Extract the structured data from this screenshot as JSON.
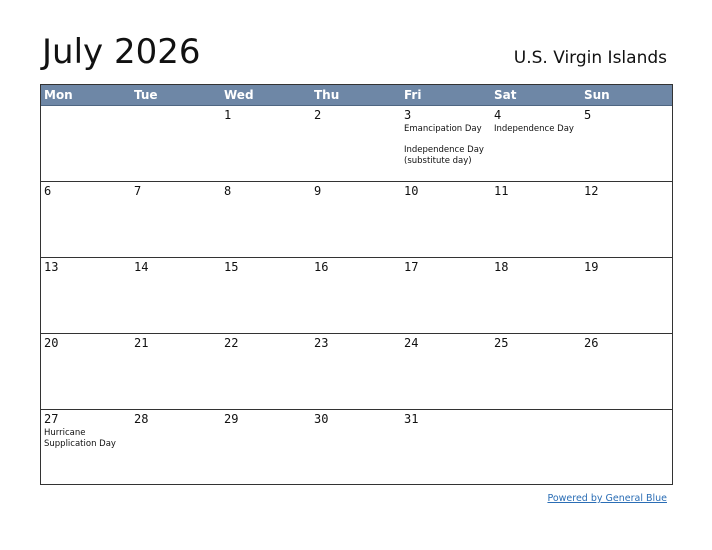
{
  "header": {
    "title": "July 2026",
    "region": "U.S. Virgin Islands"
  },
  "calendar": {
    "weekdays": [
      "Mon",
      "Tue",
      "Wed",
      "Thu",
      "Fri",
      "Sat",
      "Sun"
    ],
    "weeks": [
      [
        {
          "day": "",
          "events": []
        },
        {
          "day": "",
          "events": []
        },
        {
          "day": "1",
          "events": []
        },
        {
          "day": "2",
          "events": []
        },
        {
          "day": "3",
          "events": [
            "Emancipation Day",
            "Independence Day (substitute day)"
          ]
        },
        {
          "day": "4",
          "events": [
            "Independence Day"
          ]
        },
        {
          "day": "5",
          "events": []
        }
      ],
      [
        {
          "day": "6",
          "events": []
        },
        {
          "day": "7",
          "events": []
        },
        {
          "day": "8",
          "events": []
        },
        {
          "day": "9",
          "events": []
        },
        {
          "day": "10",
          "events": []
        },
        {
          "day": "11",
          "events": []
        },
        {
          "day": "12",
          "events": []
        }
      ],
      [
        {
          "day": "13",
          "events": []
        },
        {
          "day": "14",
          "events": []
        },
        {
          "day": "15",
          "events": []
        },
        {
          "day": "16",
          "events": []
        },
        {
          "day": "17",
          "events": []
        },
        {
          "day": "18",
          "events": []
        },
        {
          "day": "19",
          "events": []
        }
      ],
      [
        {
          "day": "20",
          "events": []
        },
        {
          "day": "21",
          "events": []
        },
        {
          "day": "22",
          "events": []
        },
        {
          "day": "23",
          "events": []
        },
        {
          "day": "24",
          "events": []
        },
        {
          "day": "25",
          "events": []
        },
        {
          "day": "26",
          "events": []
        }
      ],
      [
        {
          "day": "27",
          "events": [
            "Hurricane Supplication Day"
          ]
        },
        {
          "day": "28",
          "events": []
        },
        {
          "day": "29",
          "events": []
        },
        {
          "day": "30",
          "events": []
        },
        {
          "day": "31",
          "events": []
        },
        {
          "day": "",
          "events": []
        },
        {
          "day": "",
          "events": []
        }
      ]
    ]
  },
  "footer": {
    "link_text": "Powered by General Blue"
  },
  "colors": {
    "header_bg": "#6e87a6",
    "header_text": "#ffffff",
    "link": "#2a6db5"
  }
}
